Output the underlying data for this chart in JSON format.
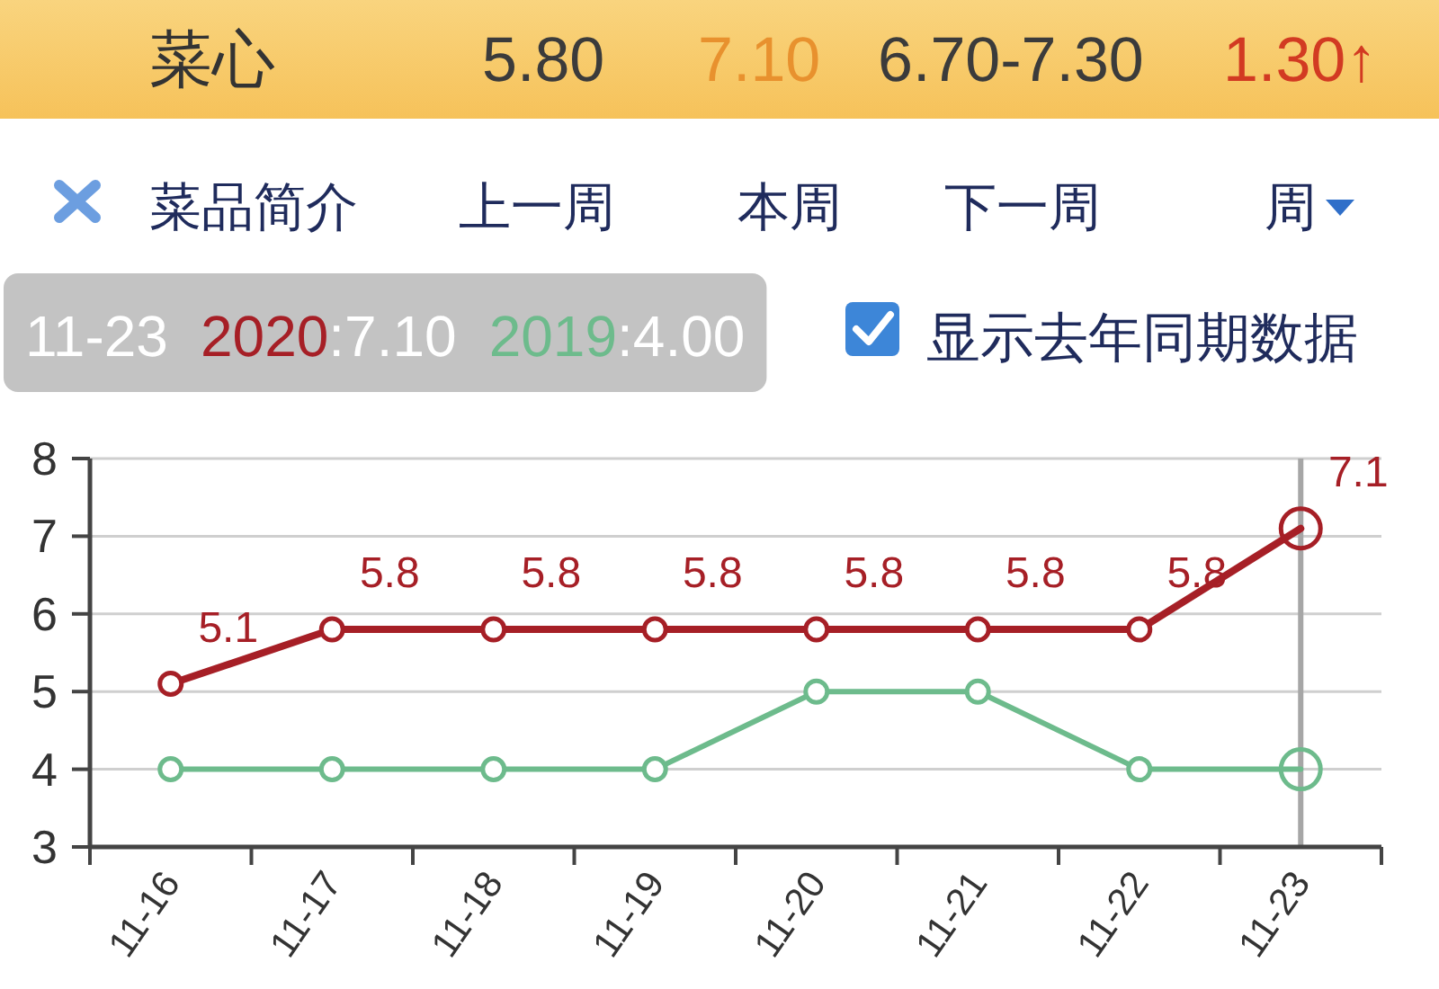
{
  "chart_data": {
    "type": "line",
    "title": "菜心",
    "annotations": [
      "5.80",
      "7.10",
      "6.70-7.30",
      "1.30↑",
      "菜品简介",
      "上一周",
      "本周",
      "下一周",
      "周",
      "11-23",
      ":7.10",
      ":4.00",
      "显示去年同期数据"
    ],
    "categories": [
      "11-16",
      "11-17",
      "11-18",
      "11-19",
      "11-20",
      "11-21",
      "11-22",
      "11-23"
    ],
    "series": [
      {
        "name": "2020",
        "color": "#a61f26",
        "values": [
          5.1,
          5.8,
          5.8,
          5.8,
          5.8,
          5.8,
          5.8,
          7.1
        ],
        "value_labels": [
          "5.1",
          "5.8",
          "5.8",
          "5.8",
          "5.8",
          "5.8",
          "5.8",
          "7.1"
        ]
      },
      {
        "name": "2019",
        "color": "#6dbb8c",
        "values": [
          4,
          4,
          4,
          4,
          5,
          5,
          4,
          4
        ]
      }
    ],
    "ylim": [
      3,
      8
    ],
    "yticks": [
      3,
      4,
      5,
      6,
      7,
      8
    ],
    "grid": "y",
    "marker": "circle",
    "legend": false,
    "ref_lines": [
      {
        "axis": "x",
        "value": "11-23",
        "color": "#a6a6a6"
      }
    ]
  }
}
